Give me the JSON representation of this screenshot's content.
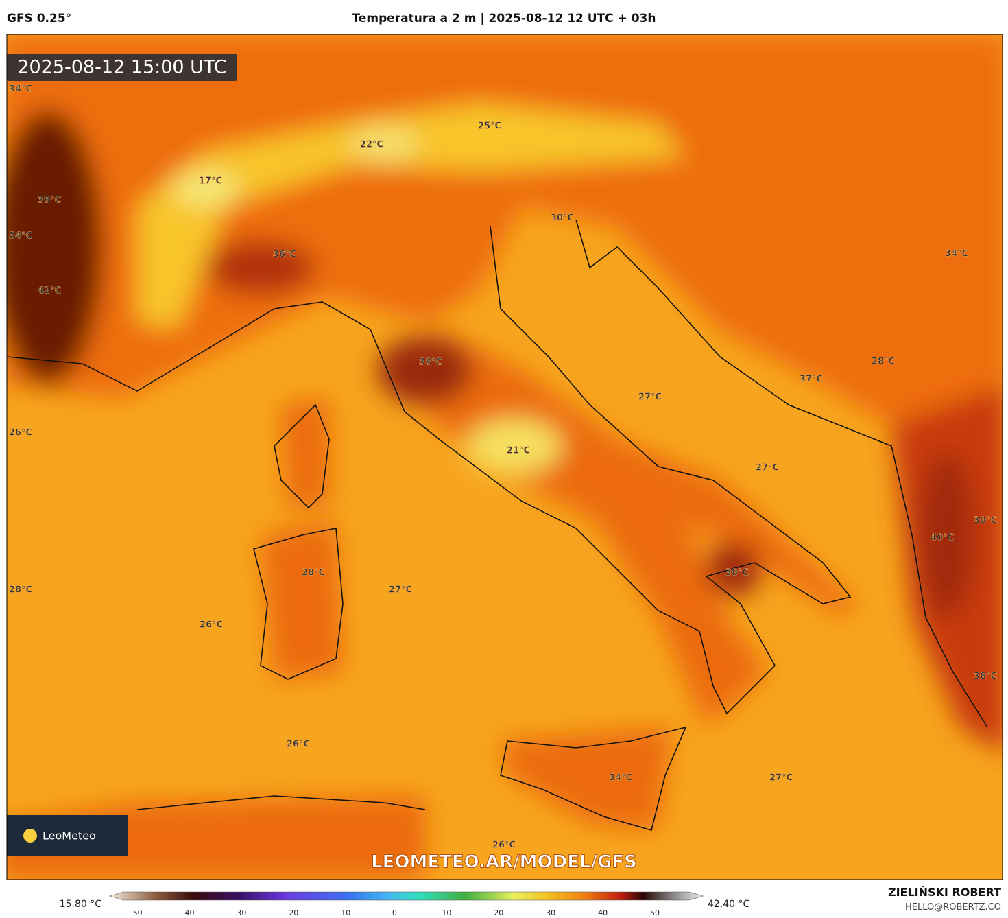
{
  "header": {
    "model": "GFS 0.25°",
    "title": "Temperatura a 2 m | 2025-08-12 12 UTC + 03h"
  },
  "map": {
    "timestamp": "2025-08-12 15:00 UTC",
    "labels": [
      "34°C",
      "39°C",
      "34°C",
      "42°C",
      "17°C",
      "22°C",
      "25°C",
      "36°C",
      "30°C",
      "34°C",
      "38°C",
      "28°C",
      "37°C",
      "27°C",
      "26°C",
      "21°C",
      "27°C",
      "30°C",
      "40°C",
      "28°C",
      "38°C",
      "28°C",
      "27°C",
      "26°C",
      "36°C",
      "26°C",
      "34°C",
      "27°C",
      "26°C"
    ],
    "logo": "LeoMeteo",
    "watermark": "LEOMETEO.AR/MODEL/GFS"
  },
  "colorbar": {
    "min_label": "15.80 °C",
    "max_label": "42.40 °C",
    "ticks": [
      "−50",
      "−40",
      "−30",
      "−20",
      "−10",
      "0",
      "10",
      "20",
      "30",
      "40",
      "50"
    ]
  },
  "footer": {
    "author": "ZIELIŃSKI ROBERT",
    "email": "HELLO@ROBERTZ.CO"
  }
}
